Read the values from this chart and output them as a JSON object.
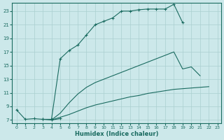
{
  "xlabel": "Humidex (Indice chaleur)",
  "bg_color": "#cce8ea",
  "grid_color": "#aacfcf",
  "line_color": "#1a6b60",
  "xlim": [
    -0.5,
    23.4
  ],
  "ylim": [
    6.5,
    24.2
  ],
  "xticks": [
    0,
    1,
    2,
    3,
    4,
    5,
    6,
    7,
    8,
    9,
    10,
    11,
    12,
    13,
    14,
    15,
    16,
    17,
    18,
    19,
    20,
    21,
    22,
    23
  ],
  "yticks": [
    7,
    9,
    11,
    13,
    15,
    17,
    19,
    21,
    23
  ],
  "series": [
    {
      "x": [
        0,
        1,
        2,
        3,
        4,
        5,
        6,
        7,
        8,
        9,
        10,
        11,
        12,
        13,
        14,
        15,
        16,
        17,
        18,
        19
      ],
      "y": [
        8.5,
        7.1,
        7.2,
        7.1,
        7.1,
        16.0,
        17.2,
        18.0,
        19.5,
        21.0,
        21.5,
        22.0,
        23.0,
        23.0,
        23.2,
        23.3,
        23.3,
        23.3,
        24.0,
        21.3
      ],
      "marker": "+",
      "linestyle": "-"
    },
    {
      "x": [
        3,
        4,
        5
      ],
      "y": [
        7.1,
        7.0,
        7.2
      ],
      "marker": "+",
      "linestyle": "-"
    },
    {
      "x": [
        4,
        5,
        6,
        7,
        8,
        9,
        10,
        11,
        12,
        13,
        14,
        15,
        16,
        17,
        18,
        19,
        20,
        21,
        22
      ],
      "y": [
        7.0,
        8.0,
        9.5,
        10.8,
        11.8,
        12.5,
        13.0,
        13.5,
        14.0,
        14.5,
        15.0,
        15.5,
        16.0,
        16.5,
        17.0,
        14.5,
        14.8,
        13.5,
        null
      ],
      "marker": null,
      "linestyle": "-"
    },
    {
      "x": [
        4,
        5,
        6,
        7,
        8,
        9,
        10,
        11,
        12,
        13,
        14,
        15,
        16,
        17,
        18,
        19,
        20,
        21,
        22
      ],
      "y": [
        7.0,
        7.4,
        7.8,
        8.3,
        8.8,
        9.2,
        9.5,
        9.8,
        10.1,
        10.4,
        10.6,
        10.9,
        11.1,
        11.3,
        11.5,
        11.6,
        11.7,
        11.8,
        11.9
      ],
      "marker": null,
      "linestyle": "-"
    }
  ]
}
